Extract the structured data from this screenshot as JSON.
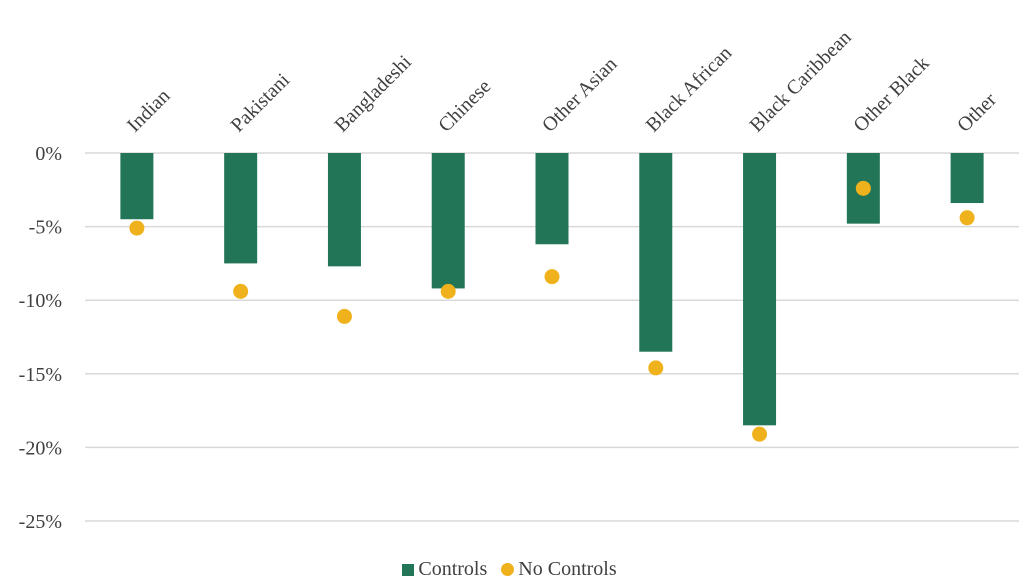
{
  "chart_data": {
    "type": "bar",
    "categories": [
      "Indian",
      "Pakistani",
      "Bangladeshi",
      "Chinese",
      "Other Asian",
      "Black African",
      "Black Caribbean",
      "Other Black",
      "Other"
    ],
    "series": [
      {
        "name": "Controls",
        "kind": "bar",
        "color": "#227556",
        "values": [
          -4.5,
          -7.5,
          -7.7,
          -9.2,
          -6.2,
          -13.5,
          -18.5,
          -4.8,
          -3.4
        ]
      },
      {
        "name": "No Controls",
        "kind": "marker",
        "color": "#f0b21c",
        "values": [
          -5.1,
          -9.4,
          -11.1,
          -9.4,
          -8.4,
          -14.6,
          -19.1,
          -2.4,
          -4.4
        ]
      }
    ],
    "ylim": [
      -25,
      0
    ],
    "yticks": [
      "0%",
      "-5%",
      "-10%",
      "-15%",
      "-20%",
      "-25%"
    ],
    "ytick_values": [
      0,
      -5,
      -10,
      -15,
      -20,
      -25
    ],
    "category_axis_position": "top",
    "grid": true,
    "legend_position": "bottom"
  },
  "legend": {
    "controls_label": "Controls",
    "no_controls_label": "No Controls"
  }
}
